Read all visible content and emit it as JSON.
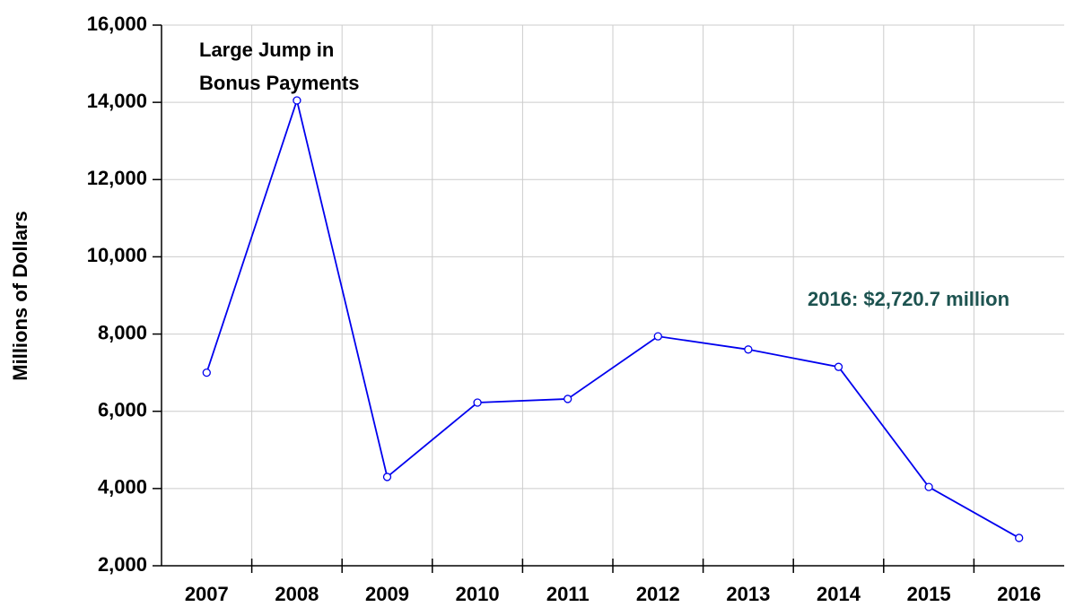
{
  "chart_data": {
    "type": "line",
    "ylabel": "Millions of Dollars",
    "categories": [
      "2007",
      "2008",
      "2009",
      "2010",
      "2011",
      "2012",
      "2013",
      "2014",
      "2015",
      "2016"
    ],
    "series": [
      {
        "color": "#0000ee",
        "values": [
          7000,
          14050,
          4300,
          6225,
          6320,
          7940,
          7600,
          7150,
          4040,
          2720.7
        ]
      }
    ],
    "ylim": [
      2000,
      16000
    ],
    "yticks": [
      {
        "value": 2000,
        "label": "2,000"
      },
      {
        "value": 4000,
        "label": "4,000"
      },
      {
        "value": 6000,
        "label": "6,000"
      },
      {
        "value": 8000,
        "label": "8,000"
      },
      {
        "value": 10000,
        "label": "10,000"
      },
      {
        "value": 12000,
        "label": "12,000"
      },
      {
        "value": 14000,
        "label": "14,000"
      },
      {
        "value": 16000,
        "label": "16,000"
      }
    ],
    "grid": true,
    "annotations": [
      {
        "lines": [
          "Large Jump in",
          "Bonus Payments"
        ],
        "color": "#000000"
      },
      {
        "text": "2016: $2,720.7 million",
        "color": "#1d5350"
      }
    ]
  }
}
